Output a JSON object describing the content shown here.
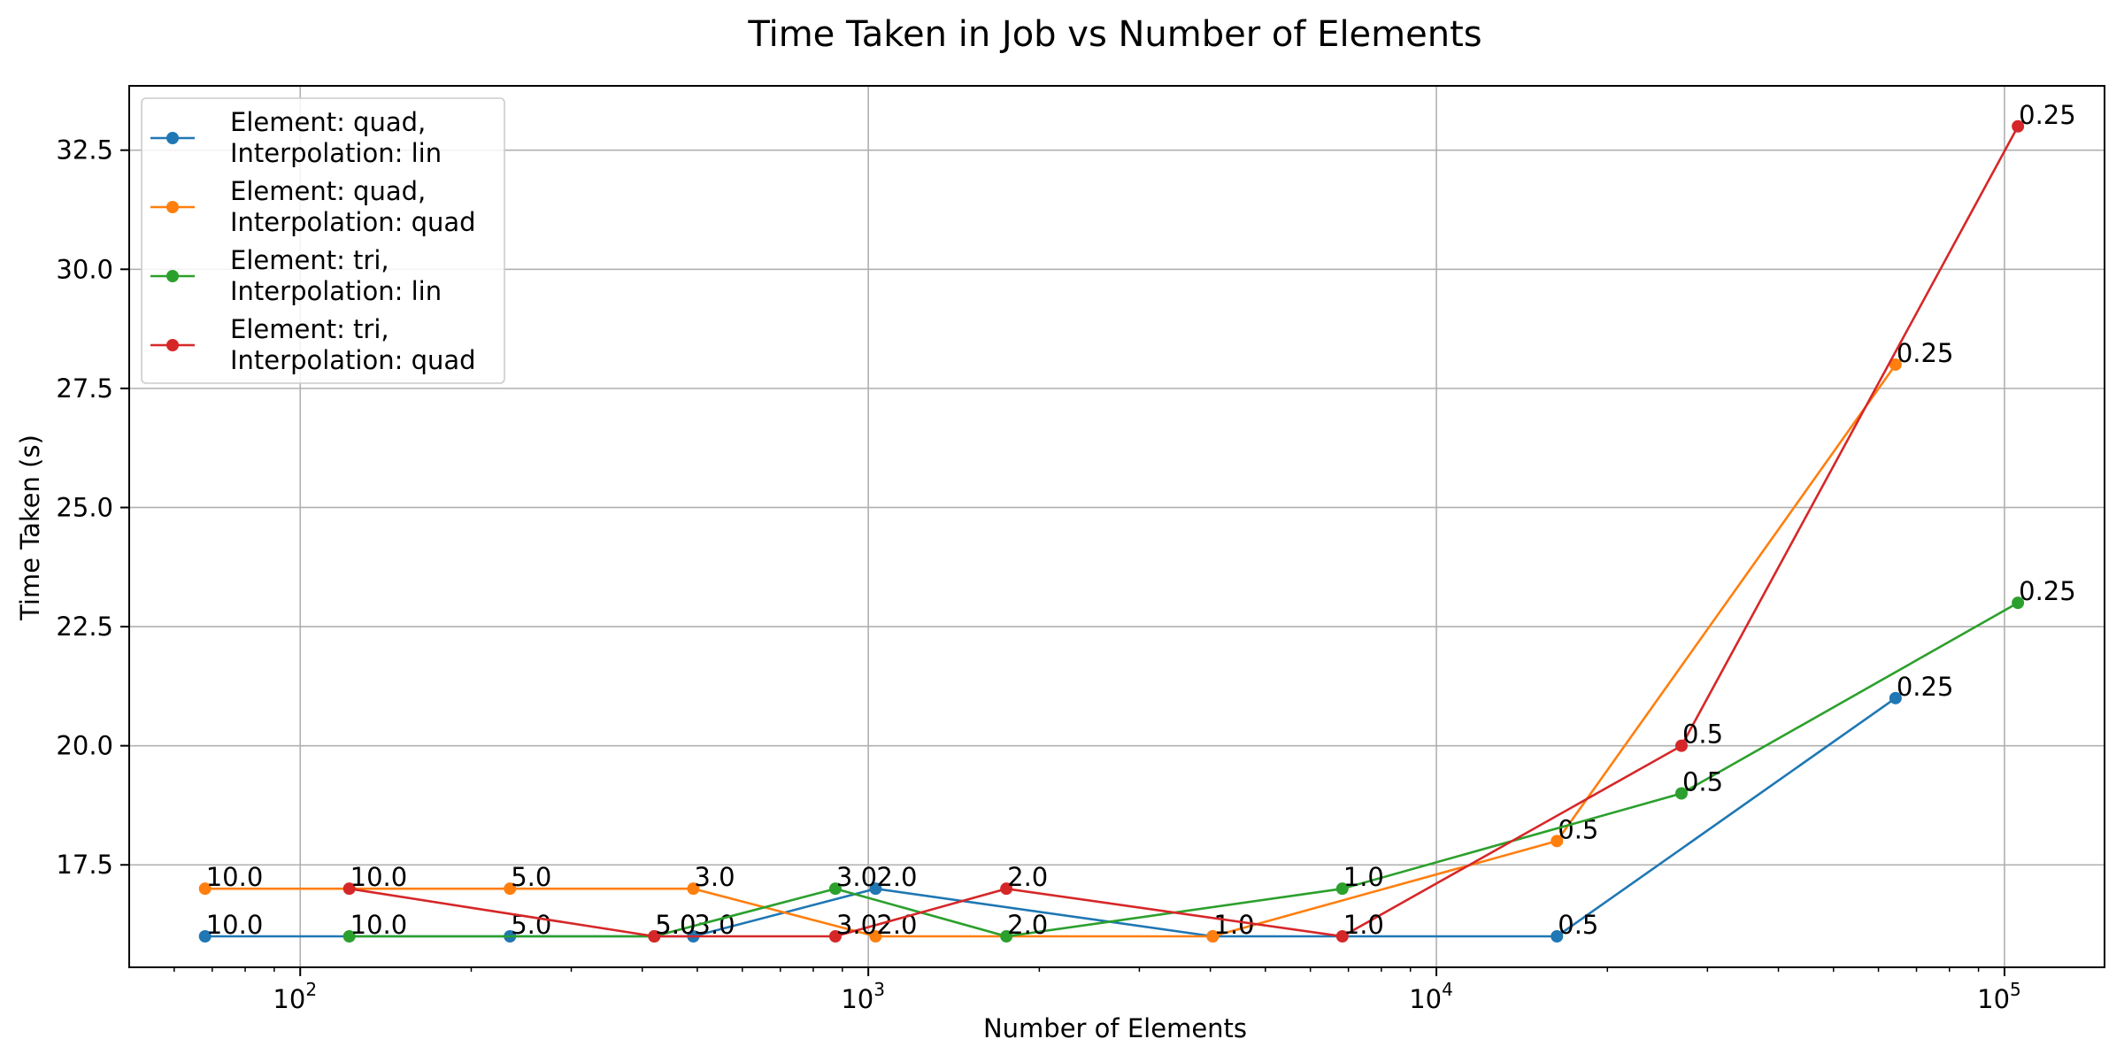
{
  "chart_data": {
    "type": "line",
    "title": "Time Taken in Job vs Number of Elements",
    "xlabel": "Number of Elements",
    "ylabel": "Time Taken (s)",
    "x_scale": "log",
    "xlim": [
      50,
      150000
    ],
    "ylim": [
      15.35,
      33.85
    ],
    "x_ticks": [
      {
        "value": 100,
        "base": "10",
        "exp": "2"
      },
      {
        "value": 1000,
        "base": "10",
        "exp": "3"
      },
      {
        "value": 10000,
        "base": "10",
        "exp": "4"
      },
      {
        "value": 100000,
        "base": "10",
        "exp": "5"
      }
    ],
    "y_ticks": [
      {
        "value": 17.5,
        "label": "17.5"
      },
      {
        "value": 20.0,
        "label": "20.0"
      },
      {
        "value": 22.5,
        "label": "22.5"
      },
      {
        "value": 25.0,
        "label": "25.0"
      },
      {
        "value": 27.5,
        "label": "27.5"
      },
      {
        "value": 30.0,
        "label": "30.0"
      },
      {
        "value": 32.5,
        "label": "32.5"
      }
    ],
    "grid": true,
    "legend_position": "top-left",
    "series": [
      {
        "name_lines": [
          "Element: quad,",
          "Interpolation: lin"
        ],
        "color": "#1f77b4",
        "points": [
          {
            "x": 68,
            "y": 16,
            "label": "10.0"
          },
          {
            "x": 234,
            "y": 16,
            "label": "5.0"
          },
          {
            "x": 492,
            "y": 16,
            "label": "3.0"
          },
          {
            "x": 1030,
            "y": 17,
            "label": "2.0"
          },
          {
            "x": 4040,
            "y": 16,
            "label": "1.0"
          },
          {
            "x": 16300,
            "y": 16,
            "label": "0.5"
          },
          {
            "x": 64300,
            "y": 21,
            "label": "0.25"
          }
        ]
      },
      {
        "name_lines": [
          "Element: quad,",
          "Interpolation: quad"
        ],
        "color": "#ff7f0e",
        "points": [
          {
            "x": 68,
            "y": 17,
            "label": "10.0"
          },
          {
            "x": 234,
            "y": 17,
            "label": "5.0"
          },
          {
            "x": 492,
            "y": 17,
            "label": "3.0"
          },
          {
            "x": 1030,
            "y": 16,
            "label": "2.0"
          },
          {
            "x": 4040,
            "y": 16,
            "label": "1.0"
          },
          {
            "x": 16300,
            "y": 18,
            "label": "0.5"
          },
          {
            "x": 64300,
            "y": 28,
            "label": "0.25"
          }
        ]
      },
      {
        "name_lines": [
          "Element: tri,",
          "Interpolation: lin"
        ],
        "color": "#2ca02c",
        "points": [
          {
            "x": 122,
            "y": 16,
            "label": "10.0"
          },
          {
            "x": 420,
            "y": 16,
            "label": "5.0"
          },
          {
            "x": 875,
            "y": 17,
            "label": "3.0"
          },
          {
            "x": 1750,
            "y": 16,
            "label": "2.0"
          },
          {
            "x": 6830,
            "y": 17,
            "label": "1.0"
          },
          {
            "x": 27000,
            "y": 19,
            "label": "0.5"
          },
          {
            "x": 105600,
            "y": 23,
            "label": "0.25"
          }
        ]
      },
      {
        "name_lines": [
          "Element: tri,",
          "Interpolation: quad"
        ],
        "color": "#d62728",
        "points": [
          {
            "x": 122,
            "y": 17,
            "label": "10.0"
          },
          {
            "x": 420,
            "y": 16,
            "label": "5.0"
          },
          {
            "x": 875,
            "y": 16,
            "label": "3.0"
          },
          {
            "x": 1750,
            "y": 17,
            "label": "2.0"
          },
          {
            "x": 6830,
            "y": 16,
            "label": "1.0"
          },
          {
            "x": 27000,
            "y": 20,
            "label": "0.5"
          },
          {
            "x": 105600,
            "y": 33,
            "label": "0.25"
          }
        ]
      }
    ]
  }
}
